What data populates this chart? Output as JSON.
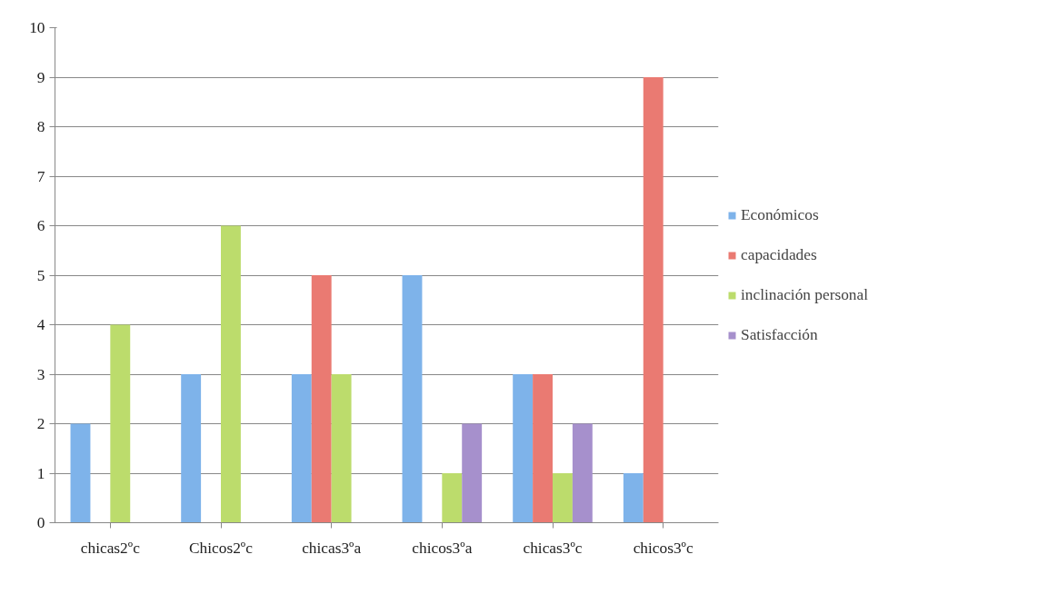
{
  "chart_data": {
    "type": "bar",
    "categories": [
      "chicas2ºc",
      "Chicos2ºc",
      "chicas3ºa",
      "chicos3ºa",
      "chicas3ºc",
      "chicos3ºc"
    ],
    "series": [
      {
        "name": "Económicos",
        "color": "#7eb3ea",
        "values": [
          2,
          3,
          3,
          5,
          3,
          1
        ]
      },
      {
        "name": "capacidades",
        "color": "#ea7a72",
        "values": [
          0,
          0,
          5,
          0,
          3,
          9
        ]
      },
      {
        "name": "inclinación personal",
        "color": "#bcdc6c",
        "values": [
          4,
          6,
          3,
          1,
          1,
          0
        ]
      },
      {
        "name": "Satisfacción",
        "color": "#a690cc",
        "values": [
          0,
          0,
          0,
          2,
          2,
          0
        ]
      }
    ],
    "ylim": [
      0,
      10
    ],
    "yticks": [
      0,
      1,
      2,
      3,
      4,
      5,
      6,
      7,
      8,
      9,
      10
    ],
    "grid": "y",
    "legend": "right"
  }
}
